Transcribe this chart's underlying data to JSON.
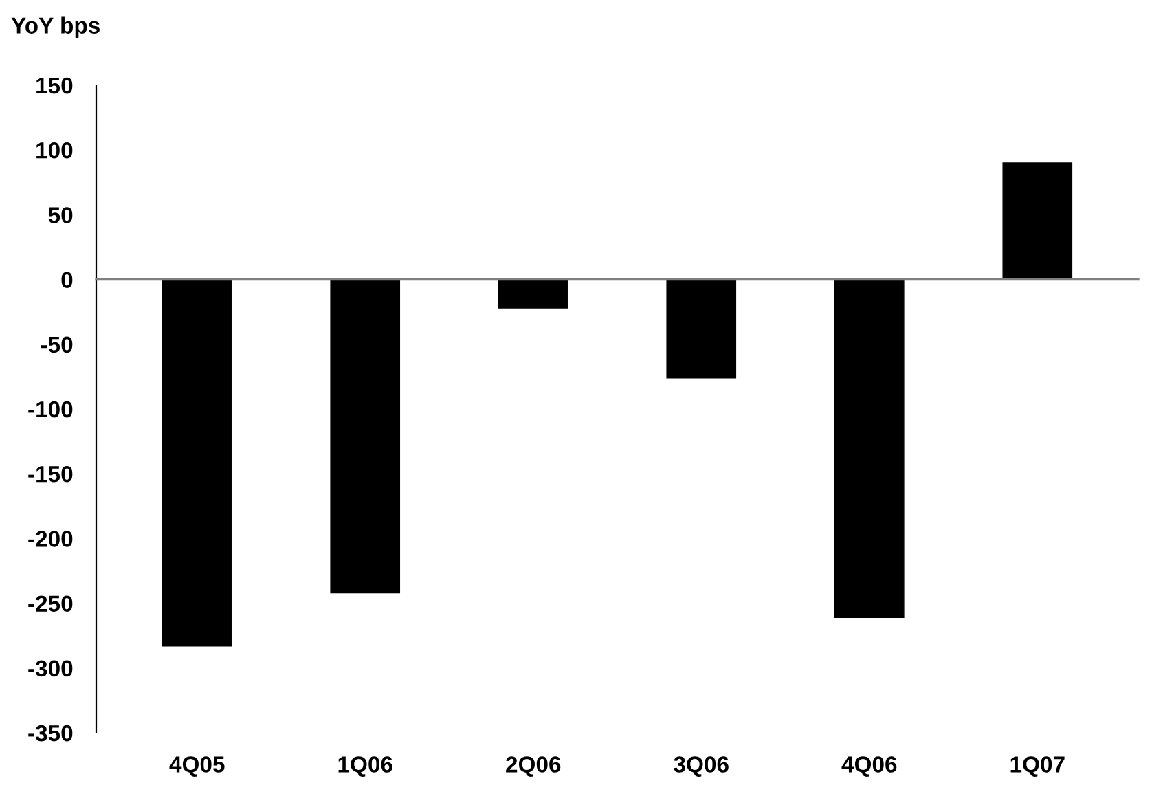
{
  "chart_data": {
    "type": "bar",
    "ylabel": "YoY bps",
    "categories": [
      "4Q05",
      "1Q06",
      "2Q06",
      "3Q06",
      "4Q06",
      "1Q07"
    ],
    "values": [
      -283,
      -242,
      -22,
      -76,
      -261,
      90
    ],
    "color": "#000000",
    "ylim": [
      -350,
      150
    ],
    "yticks": [
      -350,
      -300,
      -250,
      -200,
      -150,
      -100,
      -50,
      0,
      50,
      100,
      150
    ],
    "legend": false
  }
}
